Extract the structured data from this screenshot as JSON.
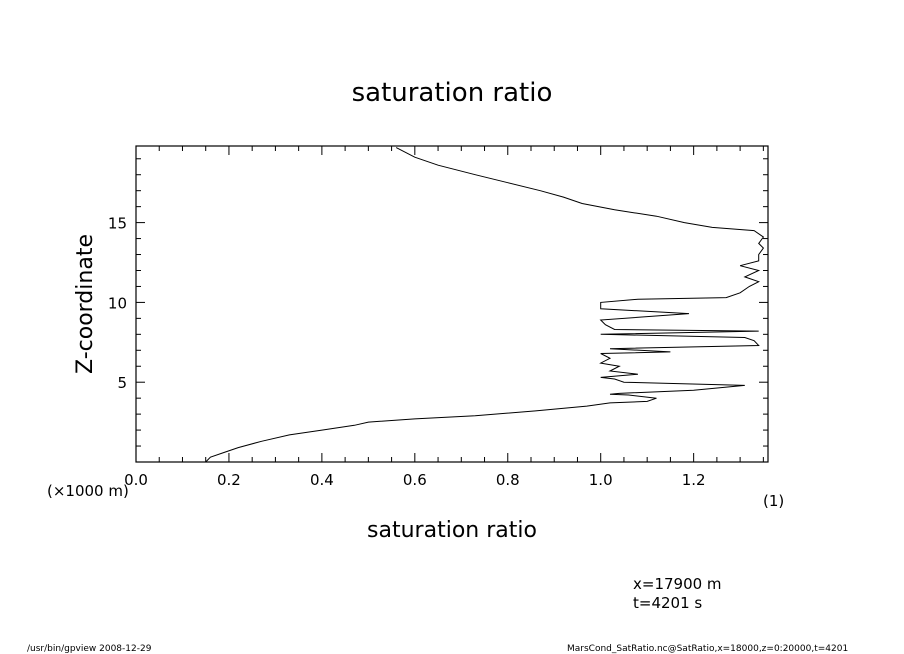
{
  "chart_data": {
    "type": "line",
    "title": "saturation ratio",
    "xlabel": "saturation ratio",
    "ylabel": "Z-coordinate",
    "x_unit": "(1)",
    "y_unit": "(×1000 m)",
    "xlim": [
      0.0,
      1.36
    ],
    "ylim": [
      0,
      19.8
    ],
    "xticks": [
      0.0,
      0.2,
      0.4,
      0.6,
      0.8,
      1.0,
      1.2
    ],
    "xtick_labels": [
      "0.0",
      "0.2",
      "0.4",
      "0.6",
      "0.8",
      "1.0",
      "1.2"
    ],
    "yticks": [
      5,
      10,
      15
    ],
    "ytick_labels": [
      "5",
      "10",
      "15"
    ],
    "grid": false,
    "series": [
      {
        "points": [
          [
            0.15,
            0.0
          ],
          [
            0.16,
            0.3
          ],
          [
            0.19,
            0.6
          ],
          [
            0.22,
            0.9
          ],
          [
            0.27,
            1.3
          ],
          [
            0.33,
            1.7
          ],
          [
            0.4,
            2.0
          ],
          [
            0.47,
            2.3
          ],
          [
            0.5,
            2.5
          ],
          [
            0.6,
            2.7
          ],
          [
            0.73,
            2.9
          ],
          [
            0.86,
            3.2
          ],
          [
            0.97,
            3.5
          ],
          [
            1.02,
            3.7
          ],
          [
            1.1,
            3.8
          ],
          [
            1.12,
            4.0
          ],
          [
            1.06,
            4.2
          ],
          [
            1.02,
            4.25
          ],
          [
            1.04,
            4.3
          ],
          [
            1.2,
            4.5
          ],
          [
            1.31,
            4.8
          ],
          [
            1.05,
            5.0
          ],
          [
            1.03,
            5.2
          ],
          [
            1.0,
            5.3
          ],
          [
            1.08,
            5.5
          ],
          [
            1.02,
            5.7
          ],
          [
            1.04,
            6.0
          ],
          [
            1.0,
            6.2
          ],
          [
            1.02,
            6.5
          ],
          [
            1.0,
            6.8
          ],
          [
            1.15,
            6.9
          ],
          [
            1.02,
            7.1
          ],
          [
            1.34,
            7.3
          ],
          [
            1.33,
            7.6
          ],
          [
            1.31,
            7.8
          ],
          [
            1.0,
            8.0
          ],
          [
            1.34,
            8.2
          ],
          [
            1.03,
            8.3
          ],
          [
            1.01,
            8.6
          ],
          [
            1.0,
            8.9
          ],
          [
            1.19,
            9.3
          ],
          [
            1.0,
            9.6
          ],
          [
            1.0,
            10.0
          ],
          [
            1.08,
            10.2
          ],
          [
            1.27,
            10.3
          ],
          [
            1.3,
            10.6
          ],
          [
            1.32,
            11.0
          ],
          [
            1.34,
            11.3
          ],
          [
            1.31,
            11.6
          ],
          [
            1.34,
            12.0
          ],
          [
            1.3,
            12.3
          ],
          [
            1.34,
            12.6
          ],
          [
            1.34,
            13.0
          ],
          [
            1.35,
            13.4
          ],
          [
            1.34,
            13.7
          ],
          [
            1.35,
            14.1
          ],
          [
            1.33,
            14.5
          ],
          [
            1.24,
            14.7
          ],
          [
            1.18,
            15.0
          ],
          [
            1.12,
            15.4
          ],
          [
            1.03,
            15.8
          ],
          [
            0.96,
            16.2
          ],
          [
            0.92,
            16.6
          ],
          [
            0.87,
            17.0
          ],
          [
            0.8,
            17.5
          ],
          [
            0.73,
            18.0
          ],
          [
            0.65,
            18.6
          ],
          [
            0.6,
            19.1
          ],
          [
            0.56,
            19.7
          ]
        ]
      }
    ]
  },
  "info": {
    "coord1": "x=17900 m",
    "coord2": "t=4201 s"
  },
  "footer": {
    "left": "/usr/bin/gpview   2008-12-29",
    "right": "MarsCond_SatRatio.nc@SatRatio,x=18000,z=0:20000,t=4201"
  }
}
